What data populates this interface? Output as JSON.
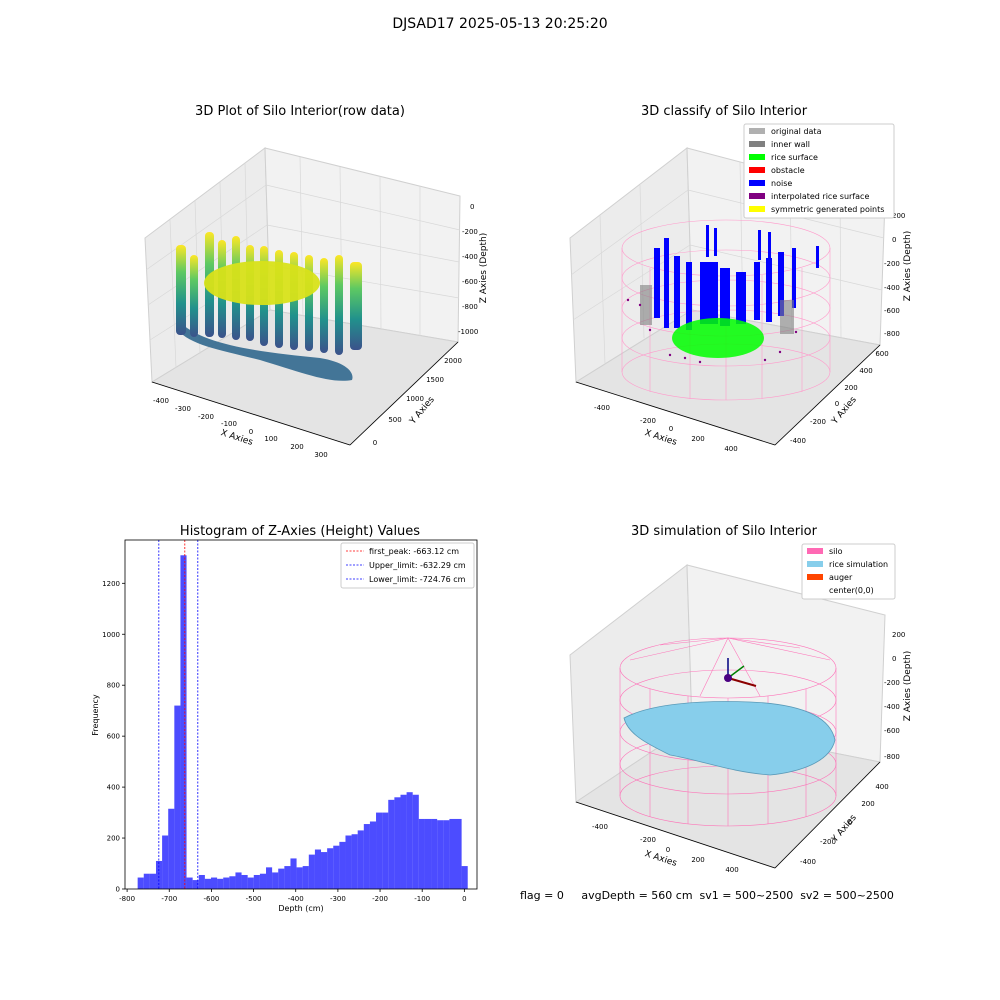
{
  "figure": {
    "suptitle": "DJSAD17 2025-05-13 20:25:20",
    "footer": "flag = 0     avgDepth = 560 cm  sv1 = 500~2500  sv2 = 500~2500"
  },
  "panels": {
    "raw": {
      "title": "3D Plot of Silo Interior(row data)",
      "xlabel": "X Axies",
      "ylabel": "Y Axies",
      "zlabel": "Z Axies (Depth)",
      "xticks": [
        "-400",
        "-300",
        "-200",
        "-100",
        "0",
        "100",
        "200",
        "300"
      ],
      "yticks": [
        "0",
        "500",
        "1000",
        "1500",
        "2000"
      ],
      "zticks": [
        "0",
        "-200",
        "-400",
        "-600",
        "-800",
        "-1000"
      ]
    },
    "classify": {
      "title": "3D classify of Silo Interior",
      "xlabel": "X Axies",
      "ylabel": "Y Axies",
      "zlabel": "Z Axies (Depth)",
      "xticks": [
        "-400",
        "-200",
        "0",
        "200",
        "400"
      ],
      "yticks": [
        "-400",
        "-200",
        "0",
        "200",
        "400",
        "600"
      ],
      "zticks": [
        "200",
        "0",
        "-200",
        "-400",
        "-600",
        "-800"
      ],
      "legend": [
        {
          "label": "original data",
          "color": "#b0b0b0"
        },
        {
          "label": "inner wall",
          "color": "#808080"
        },
        {
          "label": "rice surface",
          "color": "#00ff00"
        },
        {
          "label": "obstacle",
          "color": "#ff0000"
        },
        {
          "label": "noise",
          "color": "#0000ff"
        },
        {
          "label": "interpolated rice surface",
          "color": "#800080"
        },
        {
          "label": "symmetric generated points",
          "color": "#ffff00"
        }
      ]
    },
    "simulation": {
      "title": "3D simulation of Silo Interior",
      "xlabel": "X Axies",
      "ylabel": "Y Axies",
      "zlabel": "Z Axies (Depth)",
      "xticks": [
        "-400",
        "-200",
        "0",
        "200",
        "400"
      ],
      "yticks": [
        "-400",
        "-200",
        "0",
        "200",
        "400"
      ],
      "zticks": [
        "200",
        "0",
        "-200",
        "-400",
        "-600",
        "-800"
      ],
      "legend": [
        {
          "label": "silo",
          "color": "#ff69b4"
        },
        {
          "label": "rice simulation",
          "color": "#87ceeb"
        },
        {
          "label": "auger",
          "color": "#ff4500"
        },
        {
          "label": "center(0,0)",
          "color": "none"
        }
      ]
    }
  },
  "chart_data": [
    {
      "type": "bar",
      "title": "Histogram of Z-Axies (Height) Values",
      "xlabel": "Depth (cm)",
      "ylabel": "Frequency",
      "xlim": [
        -805,
        30
      ],
      "ylim": [
        0,
        1370
      ],
      "xticks": [
        -800,
        -700,
        -600,
        -500,
        -400,
        -300,
        -200,
        -100,
        0
      ],
      "yticks": [
        0,
        200,
        400,
        600,
        800,
        1000,
        1200
      ],
      "bin_width": 14.5,
      "bar_color": "#0000ff",
      "bin_starts": [
        -775,
        -760.5,
        -746,
        -731.5,
        -717,
        -702.5,
        -688,
        -673.5,
        -659,
        -644.5,
        -630,
        -615.5,
        -601,
        -586.5,
        -572,
        -557.5,
        -543,
        -528.5,
        -514,
        -499.5,
        -485,
        -470.5,
        -456,
        -441.5,
        -427,
        -412.5,
        -398,
        -383.5,
        -369,
        -354.5,
        -340,
        -325.5,
        -311,
        -296.5,
        -282,
        -267.5,
        -253,
        -238.5,
        -224,
        -209.5,
        -195,
        -180.5,
        -166,
        -151.5,
        -137,
        -122.5,
        -108,
        -93.5,
        -79,
        -64.5,
        -50,
        -35.5,
        -21,
        -6.5
      ],
      "values": [
        45,
        60,
        60,
        110,
        210,
        315,
        720,
        1310,
        45,
        35,
        55,
        40,
        45,
        40,
        45,
        50,
        65,
        55,
        45,
        55,
        60,
        85,
        65,
        80,
        90,
        120,
        85,
        90,
        135,
        155,
        145,
        160,
        170,
        185,
        210,
        215,
        230,
        255,
        265,
        300,
        300,
        350,
        360,
        370,
        380,
        370,
        275,
        275,
        275,
        270,
        270,
        275,
        275,
        90
      ],
      "vlines": [
        {
          "label": "first_peak: -663.12 cm",
          "x": -663.12,
          "color": "#ff0000"
        },
        {
          "label": "Upper_limit: -632.29 cm",
          "x": -632.29,
          "color": "#0000ff"
        },
        {
          "label": "Lower_limit: -724.76 cm",
          "x": -724.76,
          "color": "#0000ff"
        }
      ]
    }
  ]
}
